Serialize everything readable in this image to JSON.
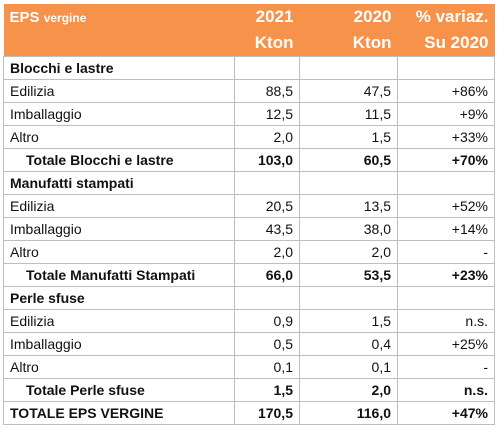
{
  "header": {
    "title_main": "EPS",
    "title_small": "vergine",
    "col_2021_line1": "2021",
    "col_2021_line2": "Kton",
    "col_2020_line1": "2020",
    "col_2020_line2": "Kton",
    "col_var_line1": "% variaz.",
    "col_var_line2": "Su 2020"
  },
  "sections": [
    {
      "title": "Blocchi e lastre",
      "rows": [
        {
          "label": "Edilizia",
          "y2021": "88,5",
          "y2020": "47,5",
          "var": "+86%"
        },
        {
          "label": "Imballaggio",
          "y2021": "12,5",
          "y2020": "11,5",
          "var": "+9%"
        },
        {
          "label": "Altro",
          "y2021": "2,0",
          "y2020": "1,5",
          "var": "+33%"
        }
      ],
      "total": {
        "label": "Totale Blocchi e lastre",
        "y2021": "103,0",
        "y2020": "60,5",
        "var": "+70%"
      }
    },
    {
      "title": "Manufatti stampati",
      "rows": [
        {
          "label": "Edilizia",
          "y2021": "20,5",
          "y2020": "13,5",
          "var": "+52%"
        },
        {
          "label": "Imballaggio",
          "y2021": "43,5",
          "y2020": "38,0",
          "var": "+14%"
        },
        {
          "label": "Altro",
          "y2021": "2,0",
          "y2020": "2,0",
          "var": "-"
        }
      ],
      "total": {
        "label": "Totale Manufatti Stampati",
        "y2021": "66,0",
        "y2020": "53,5",
        "var": "+23%"
      }
    },
    {
      "title": "Perle sfuse",
      "rows": [
        {
          "label": "Edilizia",
          "y2021": "0,9",
          "y2020": "1,5",
          "var": "n.s."
        },
        {
          "label": "Imballaggio",
          "y2021": "0,5",
          "y2020": "0,4",
          "var": "+25%"
        },
        {
          "label": "Altro",
          "y2021": "0,1",
          "y2020": "0,1",
          "var": "-"
        }
      ],
      "total": {
        "label": "Totale Perle sfuse",
        "y2021": "1,5",
        "y2020": "2,0",
        "var": "n.s."
      }
    }
  ],
  "grand_total": {
    "label": "TOTALE EPS VERGINE",
    "y2021": "170,5",
    "y2020": "116,0",
    "var": "+47%"
  },
  "colors": {
    "header_bg": "#f7924a",
    "header_text": "#ffffff",
    "border": "#bfbfbf"
  }
}
